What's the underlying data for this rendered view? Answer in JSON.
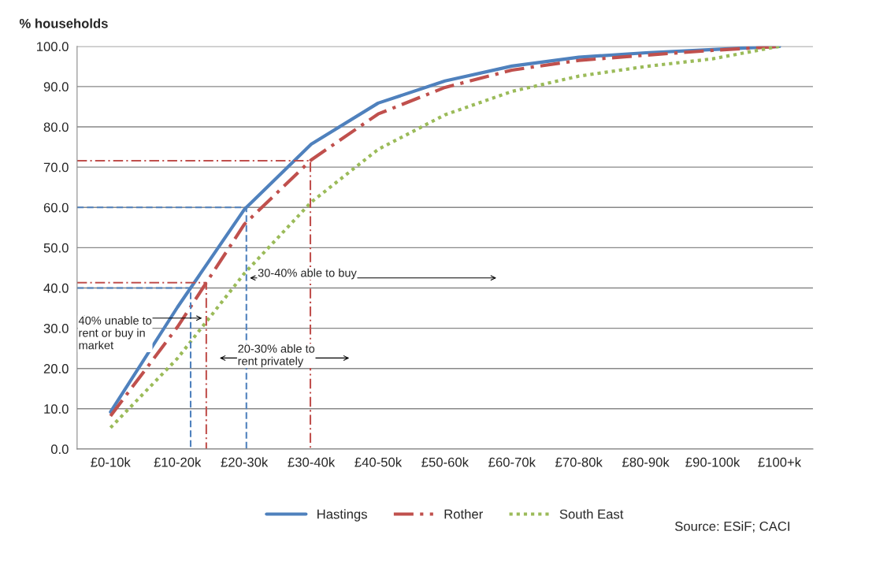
{
  "chart_data": {
    "type": "line",
    "ylabel": "% households",
    "categories": [
      "£0-10k",
      "£10-20k",
      "£20-30k",
      "£30-40k",
      "£40-50k",
      "£50-60k",
      "£60-70k",
      "£70-80k",
      "£80-90k",
      "£90-100k",
      "£100+k"
    ],
    "series": [
      {
        "name": "Hastings",
        "color": "#4f81bd",
        "line_style": "solid",
        "values": [
          9.2,
          35.2,
          59.5,
          75.7,
          85.9,
          91.4,
          95.1,
          97.3,
          98.4,
          99.2,
          100
        ]
      },
      {
        "name": "Rother",
        "color": "#c0504d",
        "line_style": "dashdot",
        "values": [
          8.2,
          30.3,
          55.8,
          71.8,
          83.2,
          89.8,
          94.1,
          96.5,
          97.8,
          99.0,
          100
        ]
      },
      {
        "name": "South East",
        "color": "#9bbb59",
        "line_style": "dotted",
        "values": [
          5.3,
          22.5,
          43.6,
          61.3,
          74.4,
          83.0,
          88.8,
          92.6,
          95.0,
          96.9,
          100
        ]
      }
    ],
    "ylim": [
      0,
      100
    ],
    "yticks": [
      {
        "value": 0,
        "label": "0.0"
      },
      {
        "value": 10,
        "label": "10.0"
      },
      {
        "value": 20,
        "label": "20.0"
      },
      {
        "value": 30,
        "label": "30.0"
      },
      {
        "value": 40,
        "label": "40.0"
      },
      {
        "value": 50,
        "label": "50.0"
      },
      {
        "value": 60,
        "label": "60.0"
      },
      {
        "value": 70,
        "label": "70.0"
      },
      {
        "value": 80,
        "label": "80.0"
      },
      {
        "value": 90,
        "label": "90.0"
      },
      {
        "value": 100,
        "label": "100.0"
      }
    ],
    "grid": "y",
    "legend": "bottom",
    "ref_lines": [
      {
        "axis": "y",
        "value": 60,
        "color": "#4f81bd",
        "line_style": "dashed"
      },
      {
        "axis": "y",
        "value": 40,
        "color": "#4f81bd",
        "line_style": "dashed"
      },
      {
        "axis": "y",
        "value": 71.6,
        "color": "#c0504d",
        "line_style": "dashdot"
      },
      {
        "axis": "y",
        "value": 41.3,
        "color": "#c0504d",
        "line_style": "dashdot"
      }
    ],
    "annotations": [
      "30-40% able to buy",
      "40% unable to\nrent or buy in\nmarket",
      "20-30% able to\nrent privately",
      "Source: ESiF; CACI"
    ]
  }
}
